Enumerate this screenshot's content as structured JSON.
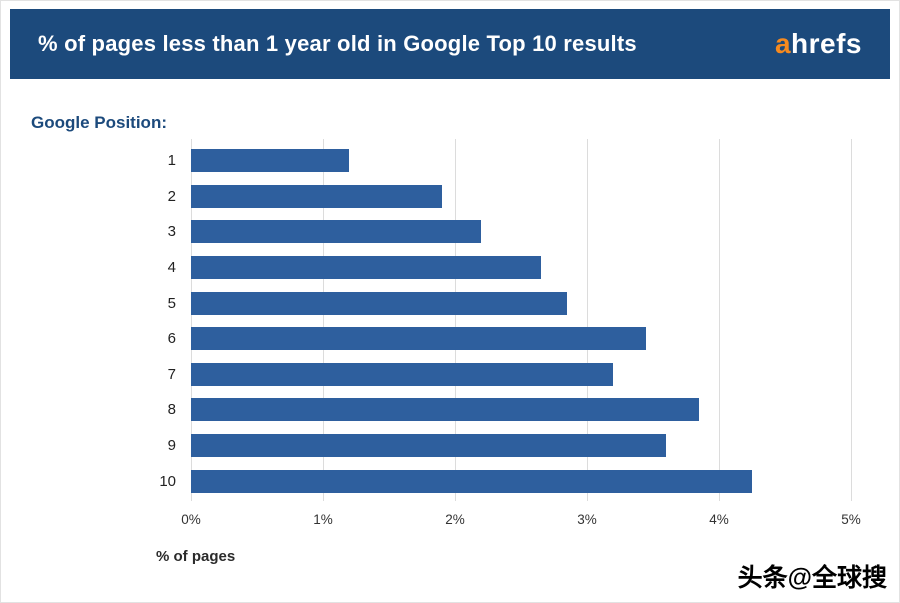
{
  "header": {
    "logo": {
      "first": "a",
      "rest": "hrefs"
    }
  },
  "watermark": "头条@全球搜",
  "colors": {
    "header_bg": "#1c4a7c",
    "bar": "#2e5f9e",
    "logo_orange": "#f68a1f",
    "category_axis_label_blue": "#1c4a7c",
    "gridline": "#dcdcdc"
  },
  "chart_data": {
    "type": "bar",
    "orientation": "horizontal",
    "title": "% of pages less than 1 year old in Google Top 10 results",
    "categories_label": "Google Position:",
    "categories": [
      "1",
      "2",
      "3",
      "4",
      "5",
      "6",
      "7",
      "8",
      "9",
      "10"
    ],
    "values": [
      1.2,
      1.9,
      2.2,
      2.65,
      2.85,
      3.45,
      3.2,
      3.85,
      3.6,
      4.25
    ],
    "xlabel": "% of pages",
    "x_ticks": [
      "0%",
      "1%",
      "2%",
      "3%",
      "4%",
      "5%"
    ],
    "xlim": [
      0,
      5
    ],
    "grid": "vertical",
    "legend": "none",
    "bar_color": "#2e5f9e"
  }
}
